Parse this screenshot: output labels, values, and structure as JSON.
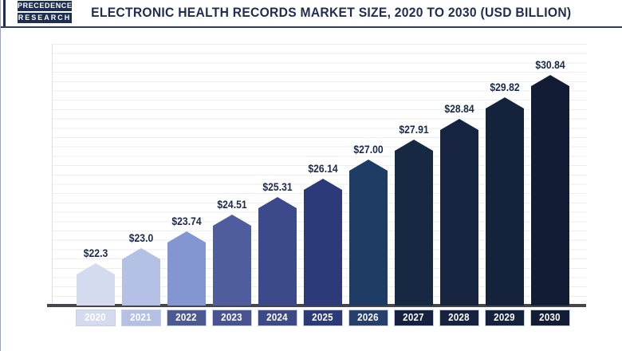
{
  "header": {
    "logo_line1": "PRECEDENCE",
    "logo_line2": "RESEARCH",
    "title": "ELECTRONIC HEALTH RECORDS MARKET SIZE, 2020 TO 2030 (USD BILLION)"
  },
  "chart_data": {
    "type": "bar",
    "title": "Electronic Health Records Market Size, 2020 to 2030 (USD Billion)",
    "categories": [
      "2020",
      "2021",
      "2022",
      "2023",
      "2024",
      "2025",
      "2026",
      "2027",
      "2028",
      "2029",
      "2030"
    ],
    "values": [
      22.3,
      23.0,
      23.74,
      24.51,
      25.31,
      26.14,
      27.0,
      27.91,
      28.84,
      29.82,
      30.84
    ],
    "value_labels": [
      "$22.3",
      "$23.0",
      "$23.74",
      "$24.51",
      "$25.31",
      "$26.14",
      "$27.00",
      "$27.91",
      "$28.84",
      "$29.82",
      "$30.84"
    ],
    "xlabel": "",
    "ylabel": "",
    "unit": "USD Billion",
    "ylim": [
      22.3,
      30.84
    ],
    "grid": "faint-horizontal",
    "legend": "none",
    "bar_shape": "pentagon-peaked",
    "bar_colors": [
      "#d5dbee",
      "#b4c1e4",
      "#8396d2",
      "#4f5d9f",
      "#3c4a8b",
      "#2c3a79",
      "#1f3c64",
      "#172843",
      "#16243f",
      "#14223c",
      "#121d35"
    ],
    "axis_label_box_colors": [
      "#d5dbee",
      "#b4c1e4",
      "#4d5991",
      "#47548f",
      "#3e4a87",
      "#2c3a78",
      "#27406b",
      "#14213f",
      "#16233f",
      "#14223c",
      "#121d35"
    ]
  },
  "colors": {
    "title_navy": "#1e2d52",
    "value_label": "#1b2a4a",
    "axis_line": "#45454f",
    "gridline": "#ededf2",
    "header_divider": "#2e3a66",
    "logo_background": "#1e2d52"
  }
}
